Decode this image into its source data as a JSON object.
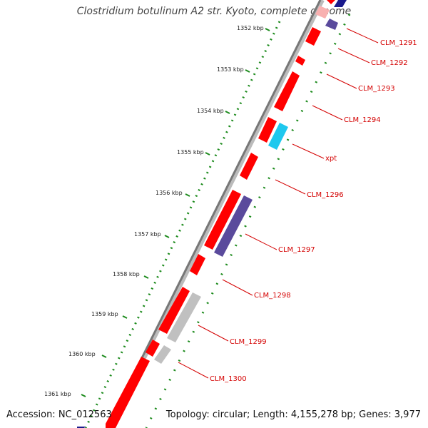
{
  "title": "Clostridium botulinum A2 str. Kyoto, complete genome",
  "accession": "Accession: NC_012563",
  "summary": "Topology: circular; Length: 4,155,278 bp; Genes: 3,977",
  "colors": {
    "forward_cds": "#ff0000",
    "reverse_cds": "#e00000",
    "other_feature": "#5a4a9c",
    "xpt_feature": "#1ec8ee",
    "pseudo_feature": "#c0c0c0",
    "backbone": "#888888",
    "tick_dots": "#1b8a1b",
    "label": "#d40000"
  },
  "kbp_ticks": [
    {
      "label": "1352 kbp"
    },
    {
      "label": "1353 kbp"
    },
    {
      "label": "1354 kbp"
    },
    {
      "label": "1355 kbp"
    },
    {
      "label": "1356 kbp"
    },
    {
      "label": "1357 kbp"
    },
    {
      "label": "1358 kbp"
    },
    {
      "label": "1359 kbp"
    },
    {
      "label": "1360 kbp"
    },
    {
      "label": "1361 kbp"
    }
  ],
  "gene_labels": [
    {
      "name": "CLM_1291"
    },
    {
      "name": "CLM_1292"
    },
    {
      "name": "CLM_1293"
    },
    {
      "name": "CLM_1294"
    },
    {
      "name": "xpt"
    },
    {
      "name": "CLM_1296"
    },
    {
      "name": "CLM_1297"
    },
    {
      "name": "CLM_1298"
    },
    {
      "name": "CLM_1299"
    },
    {
      "name": "CLM_1300"
    }
  ]
}
